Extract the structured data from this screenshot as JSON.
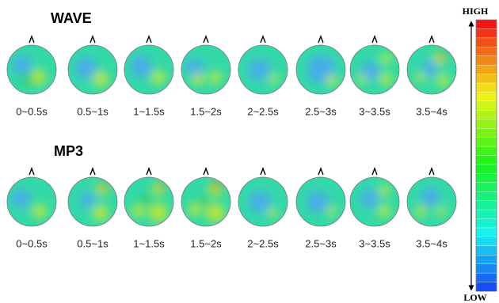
{
  "sections": [
    {
      "title": "WAVE",
      "labels": [
        "0~0.5s",
        "0.5~1s",
        "1~1.5s",
        "1.5~2s",
        "2~2.5s",
        "2.5~3s",
        "3~3.5s",
        "3.5~4s"
      ]
    },
    {
      "title": "MP3",
      "labels": [
        "0~0.5s",
        "0.5~1s",
        "1~1.5s",
        "1.5~2s",
        "2~2.5s",
        "2.5~3s",
        "3~3.5s",
        "3.5~4s"
      ]
    }
  ],
  "colorbar": {
    "high": "HIGH",
    "low": "LOW"
  }
}
